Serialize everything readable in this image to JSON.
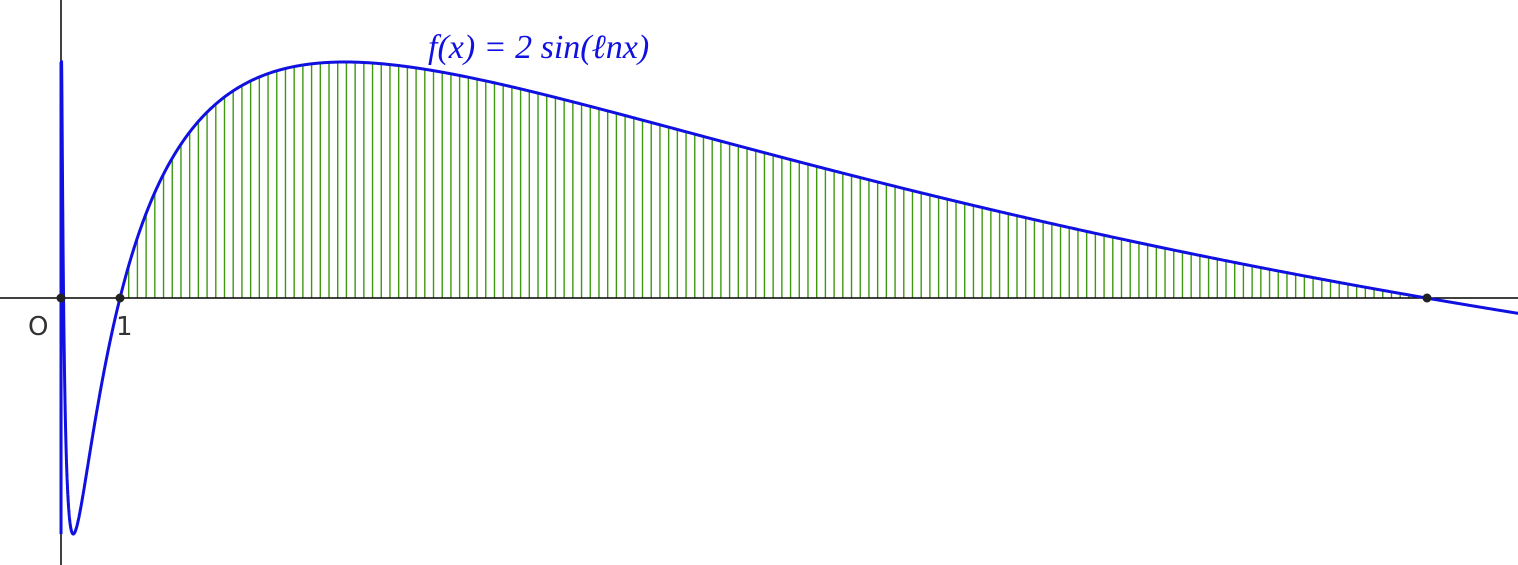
{
  "function_label": "f(x) = 2 sin(ℓnx)",
  "origin_label": "O",
  "unit_label": "1"
}
